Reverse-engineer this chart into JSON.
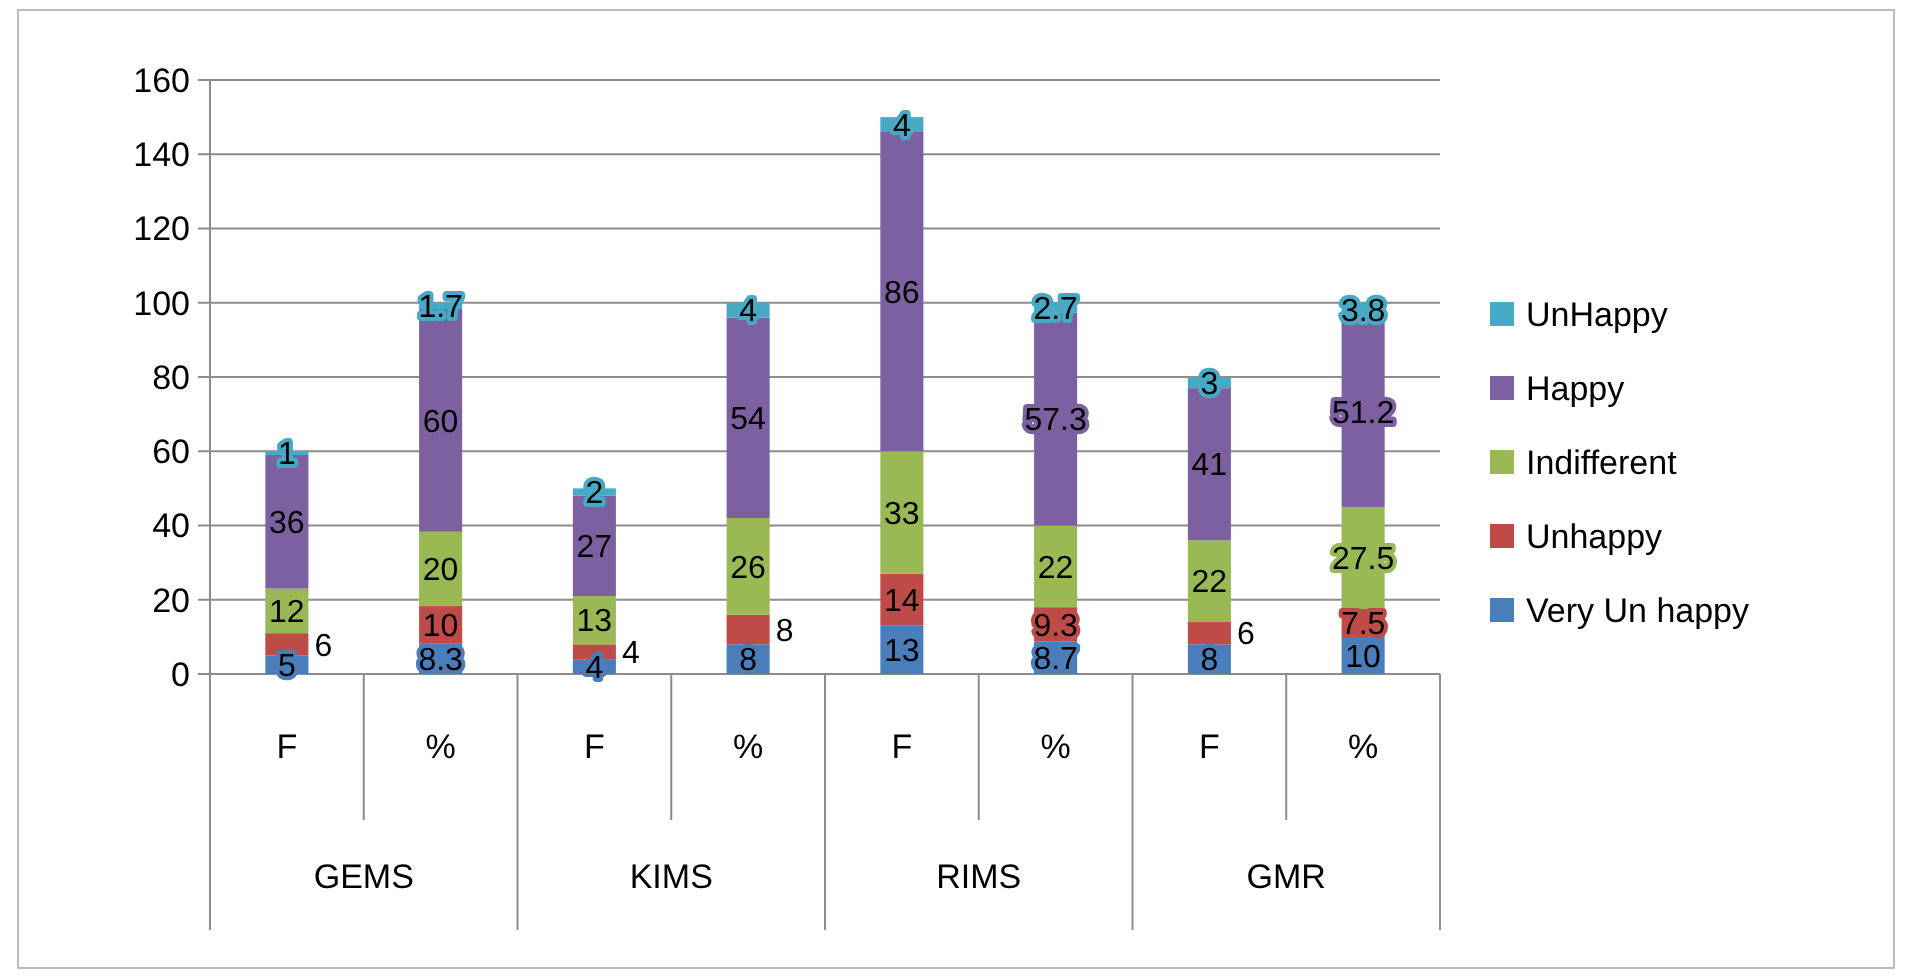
{
  "chart_data": {
    "type": "bar",
    "stacked": true,
    "categories": [
      "F",
      "%",
      "F",
      "%",
      "F",
      "%",
      "F",
      "%"
    ],
    "annotations": [
      "GEMS",
      "KIMS",
      "RIMS",
      "GMR"
    ],
    "series": [
      {
        "name": "Very Un happy",
        "color": "#4a7ebb",
        "values": [
          5,
          8.3,
          4,
          8,
          13,
          8.7,
          8,
          10
        ]
      },
      {
        "name": "Unhappy",
        "color": "#be4b48",
        "values": [
          6,
          10,
          4,
          8,
          14,
          9.3,
          6,
          7.5
        ]
      },
      {
        "name": "Indifferent",
        "color": "#98b954",
        "values": [
          12,
          20,
          13,
          26,
          33,
          22,
          22,
          27.5
        ]
      },
      {
        "name": "Happy",
        "color": "#7d60a0",
        "values": [
          36,
          60,
          27,
          54,
          86,
          57.3,
          41,
          51.2
        ]
      },
      {
        "name": "UnHappy",
        "color": "#46aac5",
        "values": [
          1,
          1.7,
          2,
          4,
          4,
          2.7,
          3,
          3.8
        ]
      }
    ],
    "ylim": [
      0,
      160
    ],
    "yticks": [
      0,
      20,
      40,
      60,
      80,
      100,
      120,
      140,
      160
    ],
    "grid": "y",
    "legend": "right",
    "data_labels": true
  }
}
